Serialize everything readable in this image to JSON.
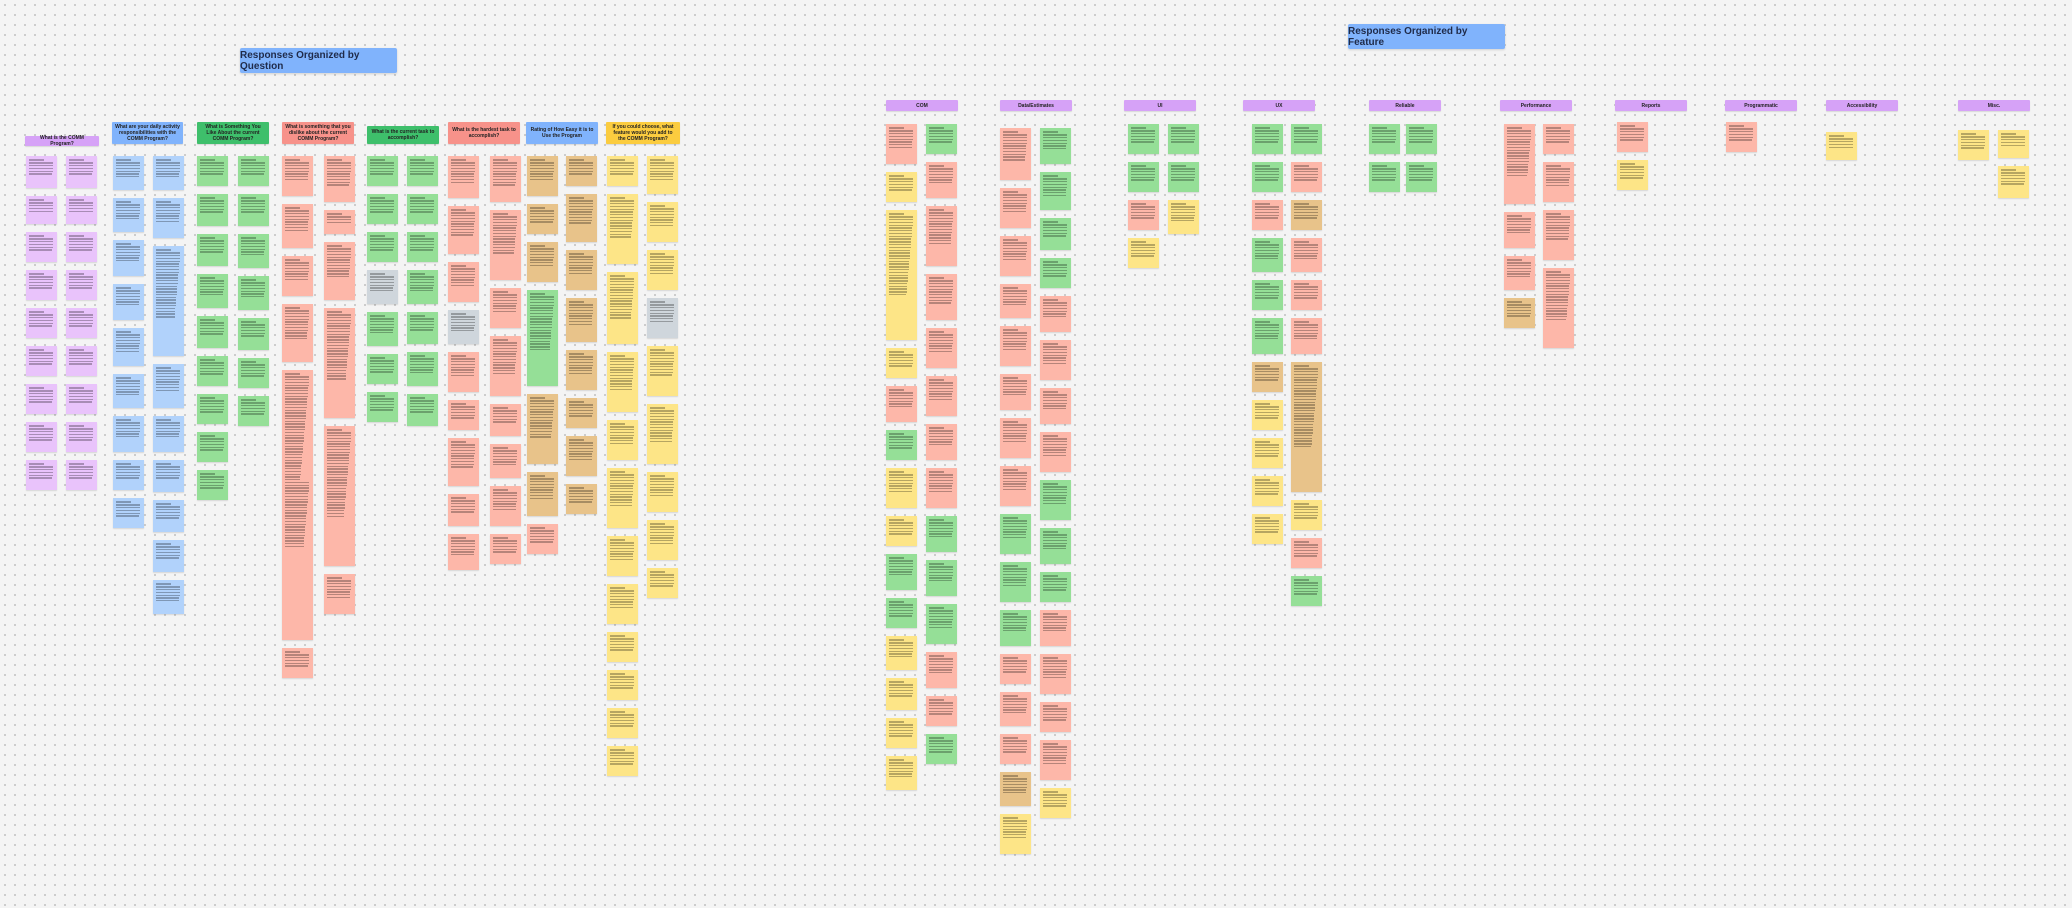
{
  "board": {
    "section_titles": {
      "by_question": "Responses Organized by Question",
      "by_feature": "Responses Organized by Feature"
    },
    "question_headers": [
      "What is the COMM Program?",
      "What are your daily activity responsibilities with the COMM Program?",
      "What is Something You Like About the current COMM Program?",
      "What is something that you dislike about the current COMM Program?",
      "What is the current task to accomplish?",
      "What is the hardest task to accomplish?",
      "Rating of How Easy it is to Use the Program",
      "If you could choose, what feature would you add to the COMM Program?"
    ],
    "feature_headers": [
      "COM",
      "Data/Estimates",
      "UI",
      "UX",
      "Reliable",
      "Performance",
      "Reports",
      "Programmatic",
      "Accessibility",
      "Misc."
    ],
    "colors": {
      "purple": "#e9c3fb",
      "blue": "#b1d2fb",
      "green": "#95df97",
      "salmon": "#fdb7a9",
      "yellow": "#fde587",
      "tan": "#e8c38a",
      "gray": "#cfd6dc",
      "header_purple": "#d6a2f7",
      "header_blue": "#80b3fc",
      "header_green": "#3ebf6b",
      "header_salmon": "#f7928a",
      "header_yellow": "#fbcc3f"
    }
  }
}
